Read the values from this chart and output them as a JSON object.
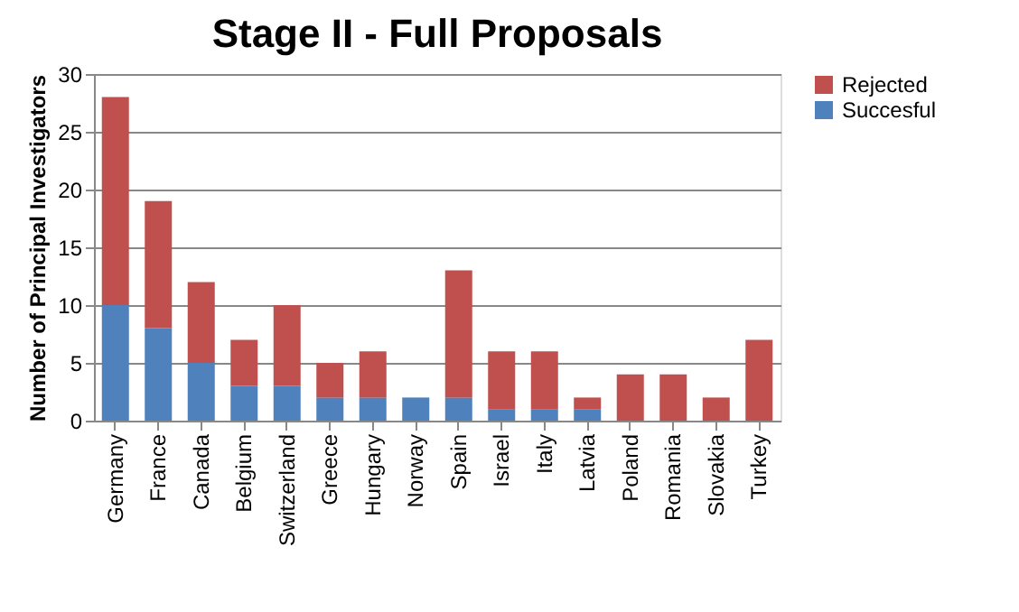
{
  "chart_data": {
    "type": "bar",
    "title": "Stage II - Full Proposals",
    "ylabel": "Number of Principal Investigators",
    "categories": [
      "Germany",
      "France",
      "Canada",
      "Belgium",
      "Switzerland",
      "Greece",
      "Hungary",
      "Norway",
      "Spain",
      "Israel",
      "Italy",
      "Latvia",
      "Poland",
      "Romania",
      "Slovakia",
      "Turkey"
    ],
    "stacked": true,
    "series": [
      {
        "name": "Succesful",
        "color": "#4f81bd",
        "values": [
          10,
          8,
          5,
          3,
          3,
          2,
          2,
          2,
          2,
          1,
          1,
          1,
          0,
          0,
          0,
          0
        ]
      },
      {
        "name": "Rejected",
        "color": "#c0504d",
        "values": [
          18,
          11,
          7,
          4,
          7,
          3,
          4,
          0,
          11,
          5,
          5,
          1,
          4,
          4,
          2,
          7
        ]
      }
    ],
    "ylim": [
      0,
      30
    ],
    "yticks": [
      0,
      5,
      10,
      15,
      20,
      25,
      30
    ],
    "grid": "y",
    "legend": "right"
  }
}
